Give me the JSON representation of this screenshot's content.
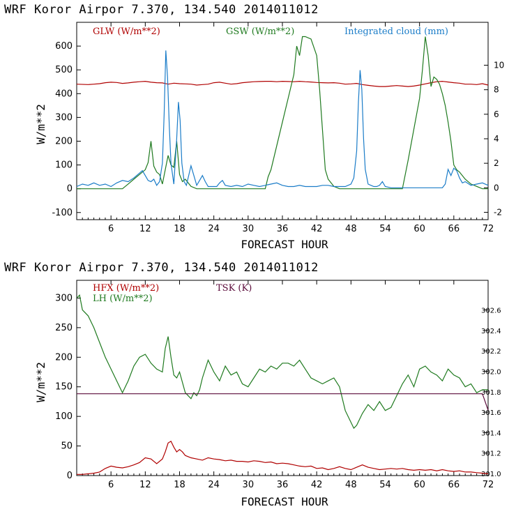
{
  "chart_data": [
    {
      "type": "line",
      "title": "WRF   Koror Airpor   7.370, 134.540  2014011012",
      "xlabel": "FORECAST HOUR",
      "ylabel": "W/m**2",
      "xlim": [
        0,
        72
      ],
      "ylim": [
        -130,
        700
      ],
      "y2lim": [
        -2.6,
        13.5
      ],
      "xticks": [
        6,
        12,
        18,
        24,
        30,
        36,
        42,
        48,
        54,
        60,
        66,
        72
      ],
      "yticks": [
        -100,
        0,
        100,
        200,
        300,
        400,
        500,
        600
      ],
      "y2ticks": [
        -2,
        0,
        2,
        4,
        6,
        8,
        10
      ],
      "grid": false,
      "legend": "top",
      "series": [
        {
          "name": "GLW (W/m**2)",
          "color": "#b00000",
          "axis": "left",
          "x": [
            0,
            2,
            3,
            4,
            5,
            6,
            7,
            8,
            9,
            10,
            11,
            12,
            13,
            14,
            15,
            16,
            17,
            18,
            19,
            20,
            21,
            22,
            23,
            24,
            25,
            26,
            27,
            28,
            29,
            30,
            31,
            32,
            33,
            34,
            35,
            36,
            37,
            38,
            39,
            40,
            41,
            42,
            43,
            44,
            45,
            46,
            47,
            48,
            49,
            50,
            51,
            52,
            53,
            54,
            55,
            56,
            57,
            58,
            59,
            60,
            61,
            62,
            63,
            64,
            65,
            66,
            67,
            68,
            69,
            70,
            71,
            72
          ],
          "y": [
            440,
            438,
            440,
            442,
            446,
            448,
            447,
            443,
            445,
            448,
            450,
            452,
            448,
            446,
            445,
            440,
            444,
            442,
            441,
            440,
            436,
            438,
            440,
            446,
            448,
            444,
            440,
            442,
            446,
            448,
            450,
            451,
            452,
            452,
            450,
            452,
            451,
            450,
            452,
            450,
            449,
            447,
            446,
            445,
            446,
            444,
            440,
            441,
            443,
            438,
            435,
            432,
            430,
            430,
            432,
            434,
            432,
            430,
            432,
            436,
            441,
            446,
            450,
            452,
            449,
            446,
            444,
            440,
            440,
            438,
            442,
            436
          ]
        },
        {
          "name": "GSW (W/m**2)",
          "color": "#1f7a1f",
          "axis": "left",
          "x": [
            0,
            8,
            9,
            10,
            11,
            12,
            12.5,
            13,
            13.5,
            14,
            14.5,
            15,
            15.5,
            16,
            16.5,
            17,
            17.5,
            18,
            18.5,
            19,
            20,
            21,
            22,
            23,
            24,
            25,
            26,
            27,
            28,
            29,
            30,
            31,
            32,
            33,
            33.5,
            34,
            35,
            36,
            37,
            38,
            38.5,
            39,
            39.5,
            40,
            41,
            42,
            42.5,
            43,
            43.5,
            44,
            45,
            46,
            47,
            48,
            49,
            50,
            51,
            52,
            53,
            54,
            55,
            56,
            57,
            58,
            59,
            60,
            60.5,
            61,
            61.5,
            62,
            62.5,
            63,
            63.5,
            64,
            64.5,
            65,
            65.5,
            66,
            66.5,
            67,
            68,
            69,
            70,
            71,
            72
          ],
          "y": [
            0,
            0,
            20,
            40,
            60,
            80,
            110,
            200,
            95,
            70,
            60,
            20,
            80,
            140,
            100,
            90,
            200,
            60,
            30,
            40,
            10,
            0,
            0,
            0,
            0,
            0,
            0,
            0,
            0,
            0,
            0,
            0,
            0,
            0,
            50,
            80,
            180,
            280,
            380,
            480,
            600,
            560,
            640,
            640,
            630,
            560,
            420,
            250,
            80,
            40,
            10,
            0,
            0,
            0,
            0,
            0,
            0,
            0,
            0,
            0,
            0,
            0,
            0,
            120,
            250,
            380,
            500,
            640,
            560,
            430,
            470,
            460,
            440,
            400,
            350,
            280,
            200,
            100,
            80,
            70,
            40,
            20,
            10,
            0,
            0
          ]
        },
        {
          "name": "Integrated cloud (mm)",
          "color": "#1a7cc8",
          "axis": "right",
          "x": [
            0,
            1,
            2,
            3,
            4,
            5,
            6,
            7,
            8,
            9,
            10,
            11,
            11.5,
            12,
            12.5,
            13,
            13.5,
            14,
            14.5,
            15,
            15.3,
            15.6,
            15.9,
            16.2,
            16.5,
            17,
            17.5,
            17.8,
            18.1,
            18.4,
            18.8,
            19.2,
            19.6,
            20,
            20.5,
            21,
            21.5,
            22,
            22.5,
            23,
            23.5,
            24,
            24.5,
            25,
            25.5,
            26,
            27,
            28,
            29,
            30,
            31,
            32,
            33,
            34,
            35,
            36,
            37,
            38,
            39,
            40,
            41,
            42,
            43,
            44,
            45,
            46,
            47,
            48,
            48.5,
            49,
            49.3,
            49.6,
            49.9,
            50.2,
            50.5,
            51,
            51.5,
            52,
            52.5,
            53,
            53.5,
            54,
            55,
            56,
            57,
            58,
            59,
            60,
            61,
            62,
            63,
            64,
            64.5,
            65,
            65.5,
            66,
            66.5,
            67,
            67.5,
            68,
            69,
            70,
            71,
            72
          ],
          "y": [
            0.1,
            0.3,
            0.2,
            0.4,
            0.2,
            0.3,
            0.1,
            0.4,
            0.6,
            0.5,
            0.8,
            1.2,
            1.4,
            1.0,
            0.6,
            0.5,
            0.7,
            0.2,
            0.5,
            2.0,
            6.0,
            11.2,
            9.0,
            5.0,
            2.0,
            0.3,
            4.0,
            7.0,
            5.5,
            2.0,
            0.5,
            0.2,
            1.0,
            1.8,
            1.0,
            0.2,
            0.6,
            1.0,
            0.5,
            0.1,
            0.1,
            0.1,
            0.1,
            0.4,
            0.6,
            0.2,
            0.1,
            0.2,
            0.1,
            0.3,
            0.2,
            0.1,
            0.2,
            0.3,
            0.4,
            0.2,
            0.1,
            0.1,
            0.2,
            0.1,
            0.1,
            0.1,
            0.2,
            0.2,
            0.1,
            0.1,
            0.1,
            0.3,
            0.8,
            3.0,
            7.0,
            9.6,
            8.0,
            4.0,
            1.5,
            0.3,
            0.2,
            0.1,
            0.1,
            0.2,
            0.5,
            0.1,
            0.0,
            0.0,
            0.0,
            0.0,
            0.0,
            0.0,
            0.0,
            0.0,
            0.0,
            0.0,
            0.3,
            1.5,
            1.0,
            1.6,
            1.4,
            0.8,
            0.4,
            0.5,
            0.2,
            0.3,
            0.4,
            0.2
          ]
        }
      ]
    },
    {
      "type": "line",
      "title": "WRF   Koror Airpor   7.370, 134.540  2014011012",
      "xlabel": "FORECAST HOUR",
      "ylabel": "W/m**2",
      "xlim": [
        0,
        72
      ],
      "ylim": [
        0,
        330
      ],
      "y2lim": [
        300.98,
        302.89
      ],
      "xticks": [
        6,
        12,
        18,
        24,
        30,
        36,
        42,
        48,
        54,
        60,
        66,
        72
      ],
      "yticks": [
        0,
        50,
        100,
        150,
        200,
        250,
        300
      ],
      "y2ticks": [
        "301.0",
        "301.2",
        "301.4",
        "301.6",
        "301.8",
        "302.0",
        "302.2",
        "302.4",
        "302.6"
      ],
      "y2tickvalues": [
        301.0,
        301.2,
        301.4,
        301.6,
        301.8,
        302.0,
        302.2,
        302.4,
        302.6
      ],
      "grid": false,
      "legend": "top-left",
      "series": [
        {
          "name": "HFX (W/m**2)",
          "color": "#b00000",
          "axis": "left",
          "x": [
            0,
            1,
            2,
            3,
            4,
            5,
            6,
            7,
            8,
            9,
            10,
            11,
            12,
            13,
            14,
            15,
            15.5,
            16,
            16.5,
            17,
            17.5,
            18,
            18.5,
            19,
            20,
            21,
            22,
            23,
            24,
            25,
            26,
            27,
            28,
            29,
            30,
            31,
            32,
            33,
            34,
            35,
            36,
            37,
            38,
            39,
            40,
            41,
            42,
            43,
            44,
            45,
            46,
            47,
            48,
            49,
            50,
            51,
            52,
            53,
            54,
            55,
            56,
            57,
            58,
            59,
            60,
            61,
            62,
            63,
            64,
            65,
            66,
            67,
            68,
            69,
            70,
            71,
            72
          ],
          "y": [
            2,
            2,
            3,
            4,
            6,
            12,
            16,
            14,
            13,
            15,
            18,
            22,
            30,
            28,
            20,
            28,
            40,
            55,
            58,
            48,
            40,
            44,
            40,
            34,
            30,
            28,
            26,
            30,
            28,
            27,
            25,
            26,
            24,
            24,
            23,
            25,
            24,
            22,
            23,
            20,
            21,
            20,
            18,
            16,
            15,
            16,
            12,
            13,
            10,
            12,
            15,
            12,
            10,
            14,
            18,
            14,
            12,
            10,
            11,
            12,
            11,
            12,
            10,
            9,
            10,
            9,
            10,
            8,
            10,
            8,
            7,
            8,
            6,
            6,
            5,
            4,
            3
          ]
        },
        {
          "name": "LH  (W/m**2)",
          "color": "#1f7a1f",
          "axis": "left",
          "x": [
            0,
            0.5,
            1,
            2,
            3,
            4,
            5,
            6,
            7,
            8,
            9,
            10,
            11,
            12,
            13,
            14,
            15,
            15.5,
            16,
            16.5,
            17,
            17.5,
            18,
            19,
            20,
            20.5,
            21,
            21.5,
            22,
            23,
            24,
            25,
            26,
            27,
            28,
            29,
            30,
            31,
            32,
            33,
            34,
            35,
            36,
            37,
            38,
            39,
            40,
            41,
            42,
            43,
            44,
            45,
            46,
            47,
            48,
            48.5,
            49,
            50,
            51,
            52,
            53,
            54,
            55,
            56,
            57,
            58,
            59,
            60,
            61,
            62,
            63,
            64,
            65,
            66,
            67,
            68,
            69,
            70,
            71,
            72
          ],
          "y": [
            300,
            305,
            280,
            270,
            250,
            225,
            200,
            180,
            160,
            140,
            160,
            185,
            200,
            205,
            190,
            180,
            175,
            215,
            235,
            200,
            170,
            165,
            175,
            140,
            130,
            140,
            135,
            145,
            165,
            195,
            175,
            160,
            185,
            170,
            175,
            155,
            150,
            165,
            180,
            175,
            185,
            180,
            190,
            190,
            185,
            195,
            180,
            165,
            160,
            155,
            160,
            165,
            150,
            110,
            90,
            80,
            85,
            105,
            120,
            110,
            125,
            110,
            115,
            135,
            155,
            170,
            150,
            180,
            185,
            175,
            170,
            160,
            180,
            170,
            165,
            150,
            155,
            140,
            145,
            145
          ]
        },
        {
          "name": "TSK (K)",
          "color": "#5a0a3a",
          "axis": "right",
          "x": [
            0,
            70,
            71,
            72
          ],
          "y": [
            301.78,
            301.78,
            301.78,
            301.62
          ]
        }
      ]
    }
  ]
}
